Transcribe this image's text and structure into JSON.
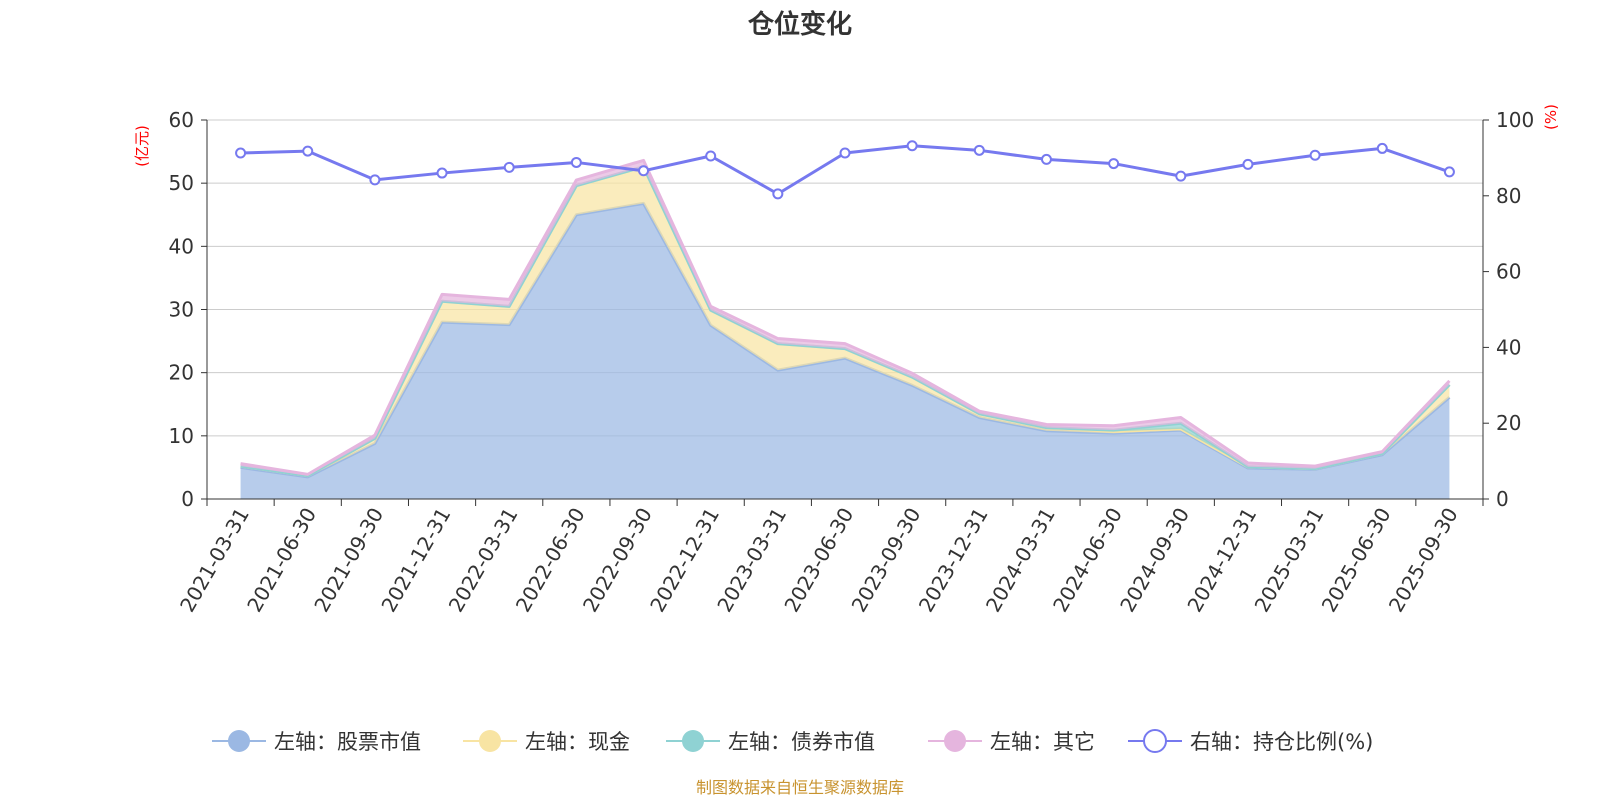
{
  "chart_data": {
    "type": "area",
    "title": "仓位变化",
    "categories": [
      "2021-03-31",
      "2021-06-30",
      "2021-09-30",
      "2021-12-31",
      "2022-03-31",
      "2022-06-30",
      "2022-09-30",
      "2022-12-31",
      "2023-03-31",
      "2023-06-30",
      "2023-09-30",
      "2023-12-31",
      "2024-03-31",
      "2024-06-30",
      "2024-09-30",
      "2024-12-31",
      "2025-03-31",
      "2025-06-30",
      "2025-09-30"
    ],
    "left_axis": {
      "unit": "(亿元)",
      "range": [
        0,
        60
      ],
      "ticks": [
        0,
        10,
        20,
        30,
        40,
        50,
        60
      ]
    },
    "right_axis": {
      "unit": "(%)",
      "range": [
        0,
        100
      ],
      "ticks": [
        0,
        20,
        40,
        60,
        80,
        100
      ]
    },
    "stacked": true,
    "series": [
      {
        "name": "左轴：股票市值",
        "axis": "left",
        "color": "#9bb8e3",
        "values": [
          5.0,
          3.5,
          8.8,
          28.0,
          27.6,
          45.0,
          46.8,
          27.5,
          20.4,
          22.3,
          18.0,
          12.9,
          10.8,
          10.4,
          10.9,
          4.9,
          4.7,
          7.0,
          16.1
        ]
      },
      {
        "name": "左轴：现金",
        "axis": "left",
        "color": "#f8e4a3",
        "values": [
          0.2,
          0.2,
          0.8,
          3.3,
          2.9,
          4.6,
          5.8,
          2.4,
          4.2,
          1.5,
          1.3,
          0.6,
          0.5,
          0.3,
          0.2,
          0.2,
          0.1,
          0.2,
          2.0
        ]
      },
      {
        "name": "左轴：债券市值",
        "axis": "left",
        "color": "#8fd2d3",
        "values": [
          0,
          0,
          0,
          0,
          0,
          0,
          0,
          0,
          0,
          0,
          0,
          0,
          0,
          0.2,
          0.9,
          0,
          0,
          0,
          0
        ]
      },
      {
        "name": "左轴：其它",
        "axis": "left",
        "color": "#e5b5de",
        "values": [
          0.4,
          0.2,
          0.5,
          1.1,
          1.1,
          0.9,
          1.0,
          0.6,
          0.8,
          0.8,
          0.6,
          0.4,
          0.5,
          0.7,
          0.9,
          0.6,
          0.4,
          0.3,
          0.6
        ]
      },
      {
        "name": "右轴：持仓比例(%)",
        "axis": "right",
        "color": "#7679ef",
        "type": "line",
        "values": [
          91.3,
          91.8,
          84.2,
          86.0,
          87.5,
          88.8,
          86.6,
          90.5,
          80.5,
          91.3,
          93.2,
          92.0,
          89.6,
          88.5,
          85.2,
          88.3,
          90.7,
          92.5,
          86.3
        ]
      }
    ],
    "legend_position": "bottom",
    "grid": true,
    "source_note": "制图数据来自恒生聚源数据库"
  }
}
